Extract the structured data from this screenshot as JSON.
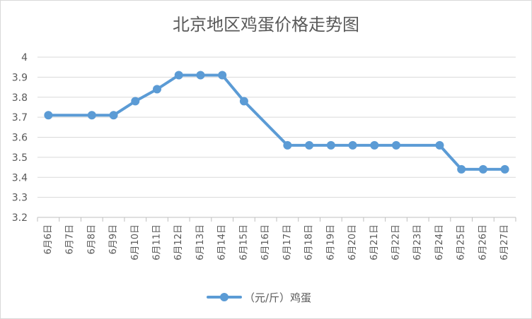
{
  "chart_data": {
    "type": "line",
    "title": "北京地区鸡蛋价格走势图",
    "xlabel": "",
    "ylabel": "",
    "ylim": [
      3.2,
      4
    ],
    "ytick_step": 0.1,
    "yticks": [
      "3.2",
      "3.3",
      "3.4",
      "3.5",
      "3.6",
      "3.7",
      "3.8",
      "3.9",
      "4"
    ],
    "grid": true,
    "legend_position": "bottom",
    "categories": [
      "6月6日",
      "6月7日",
      "6月8日",
      "6月9日",
      "6月10日",
      "6月11日",
      "6月12日",
      "6月13日",
      "6月14日",
      "6月15日",
      "6月16日",
      "6月17日",
      "6月18日",
      "6月19日",
      "6月20日",
      "6月21日",
      "6月22日",
      "6月23日",
      "6月24日",
      "6月25日",
      "6月26日",
      "6月27日"
    ],
    "series": [
      {
        "name": "（元/斤）鸡蛋",
        "color": "#5b9bd5",
        "values": [
          3.71,
          null,
          3.71,
          3.71,
          3.78,
          3.84,
          3.91,
          3.91,
          3.91,
          3.78,
          null,
          3.56,
          3.56,
          3.56,
          3.56,
          3.56,
          3.56,
          null,
          3.56,
          3.44,
          3.44,
          3.44
        ]
      }
    ]
  }
}
